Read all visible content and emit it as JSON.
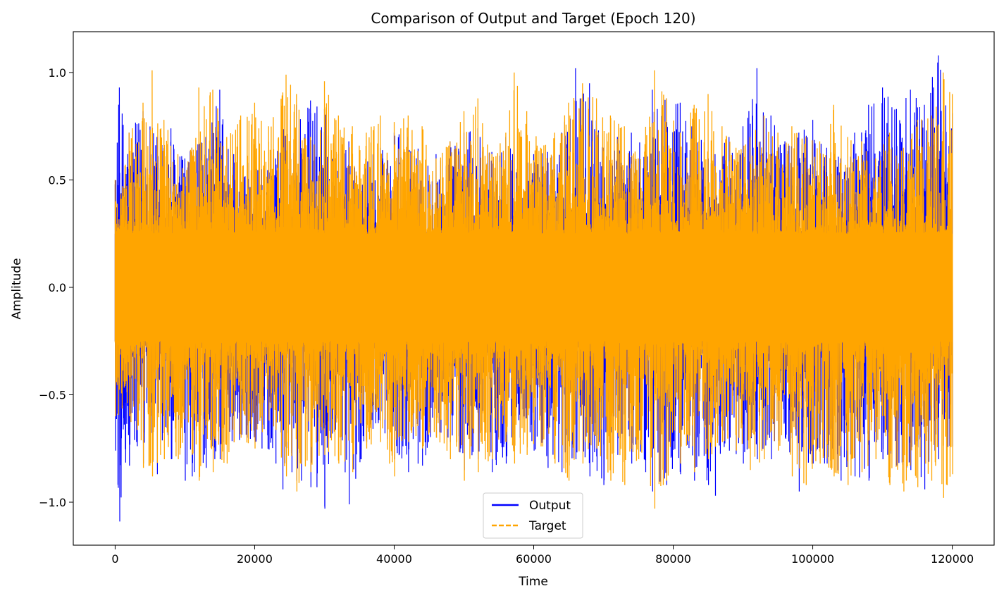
{
  "chart_data": {
    "type": "line",
    "title": "Comparison of Output and Target (Epoch 120)",
    "xlabel": "Time",
    "ylabel": "Amplitude",
    "xlim": [
      -6000,
      126000
    ],
    "ylim": [
      -1.2,
      1.19
    ],
    "xticks": [
      0,
      20000,
      40000,
      60000,
      80000,
      100000,
      120000
    ],
    "xtick_labels": [
      "0",
      "20000",
      "40000",
      "60000",
      "80000",
      "100000",
      "120000"
    ],
    "yticks": [
      -1.0,
      -0.5,
      0.0,
      0.5,
      1.0
    ],
    "ytick_labels": [
      "−1.0",
      "−0.5",
      "0.0",
      "0.5",
      "1.0"
    ],
    "grid": false,
    "legend": {
      "position": "bottom-center"
    },
    "series": [
      {
        "name": "Output",
        "color": "#0000ff",
        "linestyle": "solid",
        "x_range": [
          0,
          120000
        ],
        "envelope_x": [
          0,
          600,
          2000,
          4000,
          6000,
          8000,
          10000,
          11000,
          13000,
          15000,
          17000,
          19000,
          21000,
          23000,
          24000,
          26000,
          28000,
          30000,
          32000,
          33500,
          36000,
          38000,
          40000,
          42000,
          44000,
          46000,
          48000,
          50000,
          52000,
          54000,
          56000,
          58000,
          60000,
          62000,
          64000,
          66000,
          68000,
          70000,
          72000,
          74000,
          76000,
          77000,
          79000,
          81000,
          83000,
          85000,
          86000,
          88000,
          90000,
          92000,
          94000,
          96000,
          98000,
          100000,
          102000,
          104000,
          106000,
          108000,
          110000,
          112000,
          114000,
          116000,
          118000,
          120000
        ],
        "envelope_max": [
          0.48,
          0.93,
          0.72,
          0.82,
          0.7,
          0.74,
          0.6,
          0.65,
          0.7,
          0.92,
          0.62,
          0.58,
          0.55,
          0.6,
          0.78,
          0.85,
          0.87,
          0.83,
          0.62,
          0.68,
          0.6,
          0.65,
          0.72,
          0.7,
          0.66,
          0.62,
          0.68,
          0.72,
          0.74,
          0.63,
          0.7,
          0.6,
          0.62,
          0.63,
          0.72,
          1.02,
          0.95,
          0.65,
          0.7,
          0.72,
          0.65,
          0.92,
          0.88,
          0.86,
          0.78,
          0.6,
          0.62,
          0.7,
          0.75,
          1.02,
          0.8,
          0.68,
          0.72,
          0.78,
          0.65,
          0.6,
          0.72,
          0.85,
          0.93,
          0.83,
          0.92,
          0.85,
          1.08,
          0.81
        ],
        "envelope_min": [
          -0.76,
          -1.09,
          -0.83,
          -0.82,
          -0.87,
          -0.8,
          -0.9,
          -0.88,
          -0.84,
          -0.8,
          -0.72,
          -0.7,
          -0.75,
          -0.82,
          -0.94,
          -0.9,
          -0.93,
          -1.03,
          -0.7,
          -1.01,
          -0.72,
          -0.62,
          -0.8,
          -0.86,
          -0.83,
          -0.7,
          -0.72,
          -0.85,
          -0.8,
          -0.86,
          -0.82,
          -0.7,
          -0.76,
          -0.84,
          -0.86,
          -0.8,
          -0.88,
          -0.92,
          -0.78,
          -0.82,
          -0.86,
          -0.95,
          -0.92,
          -0.87,
          -0.9,
          -0.92,
          -0.97,
          -0.76,
          -0.82,
          -0.8,
          -0.8,
          -0.7,
          -0.95,
          -0.82,
          -0.82,
          -0.9,
          -0.88,
          -0.9,
          -0.8,
          -0.83,
          -0.85,
          -0.94,
          -0.8,
          -0.74
        ]
      },
      {
        "name": "Target",
        "color": "#ffa500",
        "linestyle": "dashed",
        "x_range": [
          0,
          120000
        ],
        "envelope_x": [
          0,
          2000,
          4000,
          5300,
          7000,
          9000,
          11000,
          12000,
          14000,
          16000,
          18000,
          20000,
          22000,
          24500,
          26000,
          28000,
          30000,
          32000,
          34000,
          36000,
          38000,
          40000,
          42000,
          44000,
          46000,
          48000,
          50000,
          52000,
          54000,
          56000,
          57200,
          59000,
          61000,
          63000,
          65000,
          67000,
          69000,
          71000,
          73000,
          75000,
          77300,
          79000,
          81000,
          83000,
          85000,
          87000,
          89000,
          91000,
          93000,
          95000,
          97000,
          99000,
          101000,
          103000,
          105000,
          107000,
          109000,
          111000,
          113000,
          115000,
          117000,
          118700,
          120000
        ],
        "envelope_max": [
          0.5,
          0.72,
          0.86,
          1.01,
          0.78,
          0.62,
          0.65,
          0.93,
          0.92,
          0.7,
          0.8,
          0.86,
          0.75,
          0.99,
          0.9,
          0.7,
          0.96,
          0.8,
          0.75,
          0.72,
          0.8,
          0.77,
          0.8,
          0.75,
          0.6,
          0.68,
          0.82,
          0.88,
          0.62,
          0.72,
          1.0,
          0.82,
          0.65,
          0.72,
          0.86,
          0.95,
          0.88,
          0.8,
          0.75,
          0.6,
          1.01,
          0.88,
          0.72,
          0.85,
          0.9,
          0.75,
          0.65,
          0.7,
          0.8,
          0.72,
          0.75,
          0.7,
          0.68,
          0.85,
          0.7,
          0.68,
          0.6,
          0.72,
          0.65,
          0.78,
          0.8,
          1.0,
          0.9
        ],
        "envelope_min": [
          -0.6,
          -0.6,
          -0.84,
          -0.88,
          -0.8,
          -0.8,
          -0.78,
          -0.9,
          -0.86,
          -0.82,
          -0.7,
          -0.75,
          -0.62,
          -0.88,
          -0.95,
          -0.86,
          -0.78,
          -0.82,
          -0.86,
          -0.75,
          -0.72,
          -0.88,
          -0.72,
          -0.75,
          -0.7,
          -0.8,
          -0.9,
          -0.86,
          -0.8,
          -0.72,
          -0.82,
          -0.78,
          -0.74,
          -0.82,
          -0.9,
          -0.82,
          -0.75,
          -0.9,
          -0.92,
          -0.8,
          -1.03,
          -0.9,
          -0.82,
          -0.86,
          -0.8,
          -0.72,
          -0.76,
          -0.85,
          -0.8,
          -0.76,
          -0.88,
          -0.92,
          -0.82,
          -0.88,
          -0.92,
          -0.86,
          -0.8,
          -0.92,
          -0.95,
          -0.93,
          -0.9,
          -0.98,
          -0.87
        ]
      }
    ]
  }
}
